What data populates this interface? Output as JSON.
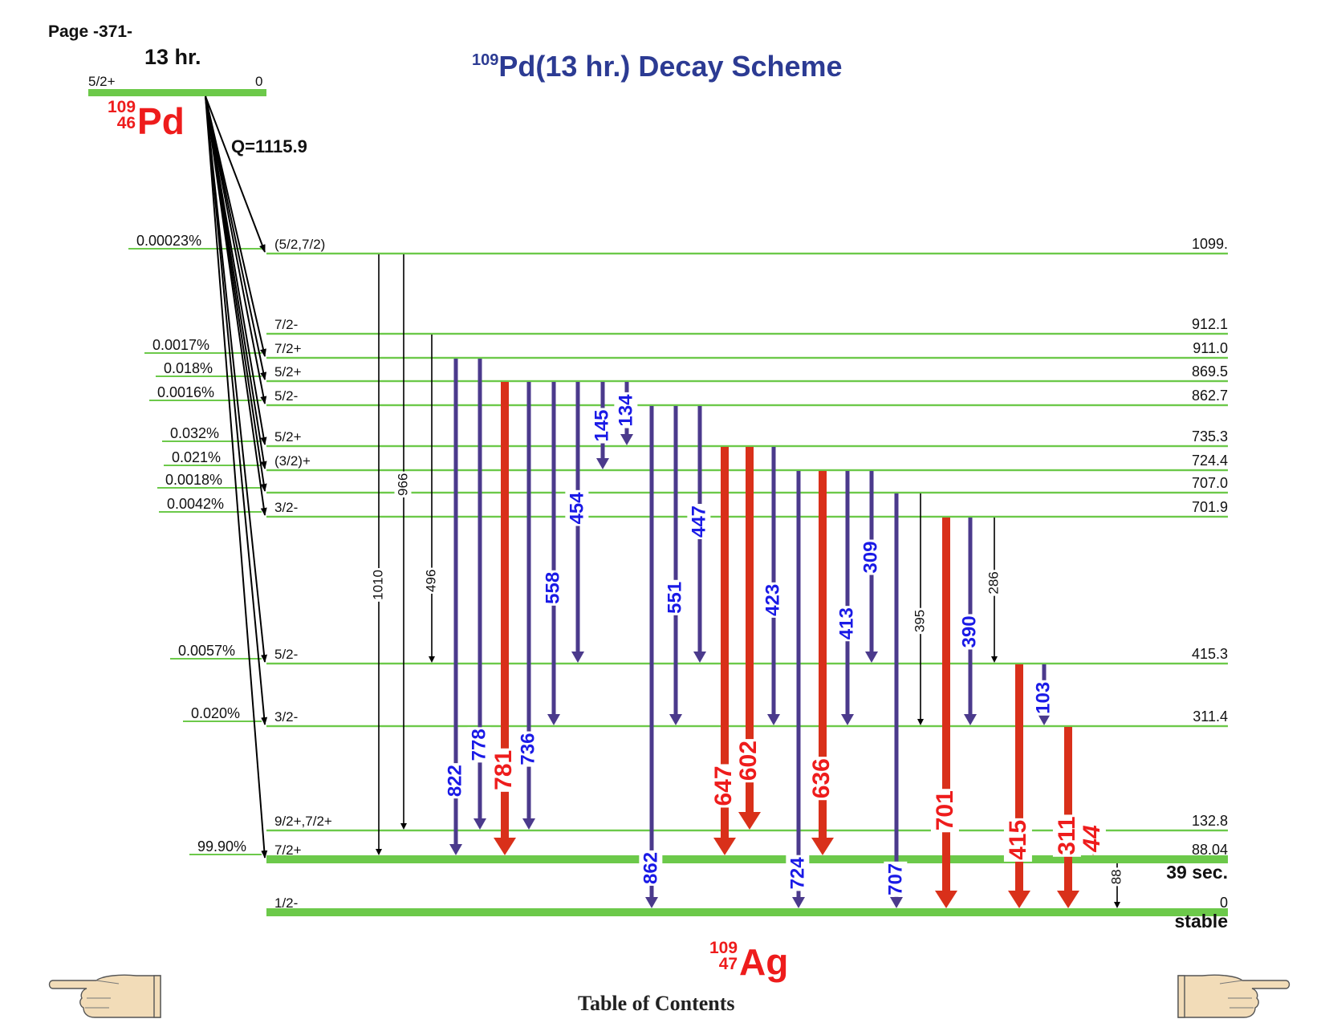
{
  "page_label": "Page -371-",
  "title": {
    "mass": "109",
    "text": "Pd(13 hr.) Decay Scheme"
  },
  "parent": {
    "mass": "109",
    "z": "46",
    "symbol": "Pd",
    "half_life": "13 hr.",
    "spin": "5/2+",
    "energy": "0",
    "q_value": "Q=1115.9"
  },
  "daughter": {
    "mass": "109",
    "z": "47",
    "symbol": "Ag"
  },
  "levels": [
    {
      "energy": "1099.",
      "spin": "(5/2,7/2)",
      "branch": "0.00023%",
      "e": 1099
    },
    {
      "energy": "912.1",
      "spin": "7/2-",
      "branch": "",
      "e": 912.1
    },
    {
      "energy": "911.0",
      "spin": "7/2+",
      "branch": "0.0017%",
      "e": 911.0
    },
    {
      "energy": "869.5",
      "spin": "5/2+",
      "branch": "0.018%",
      "e": 869.5
    },
    {
      "energy": "862.7",
      "spin": "5/2-",
      "branch": "0.0016%",
      "e": 862.7
    },
    {
      "energy": "735.3",
      "spin": "5/2+",
      "branch": "0.032%",
      "e": 735.3
    },
    {
      "energy": "724.4",
      "spin": "(3/2)+",
      "branch": "0.021%",
      "e": 724.4
    },
    {
      "energy": "707.0",
      "spin": "",
      "branch": "0.0018%",
      "e": 707.0
    },
    {
      "energy": "701.9",
      "spin": "3/2-",
      "branch": "0.0042%",
      "e": 701.9
    },
    {
      "energy": "415.3",
      "spin": "5/2-",
      "branch": "0.0057%",
      "e": 415.3
    },
    {
      "energy": "311.4",
      "spin": "3/2-",
      "branch": "0.020%",
      "e": 311.4
    },
    {
      "energy": "132.8",
      "spin": "9/2+,7/2+",
      "branch": "",
      "e": 132.8
    },
    {
      "energy": "88.04",
      "spin": "7/2+",
      "branch": "99.90%",
      "e": 88.04,
      "half_life": "39 sec."
    },
    {
      "energy": "0",
      "spin": "1/2-",
      "branch": "",
      "e": 0,
      "half_life": "stable"
    }
  ],
  "gammas": [
    {
      "label": "1010",
      "from": 1099,
      "to": 88.04,
      "style": "thin"
    },
    {
      "label": "966",
      "from": 1099,
      "to": 132.8,
      "style": "thin"
    },
    {
      "label": "496",
      "from": 912.1,
      "to": 415.3,
      "style": "thin"
    },
    {
      "label": "822",
      "from": 911.0,
      "to": 88.04,
      "style": "medium"
    },
    {
      "label": "778",
      "from": 911.0,
      "to": 132.8,
      "style": "medium"
    },
    {
      "label": "781",
      "from": 869.5,
      "to": 88.04,
      "style": "strong"
    },
    {
      "label": "736",
      "from": 869.5,
      "to": 132.8,
      "style": "medium"
    },
    {
      "label": "558",
      "from": 869.5,
      "to": 311.4,
      "style": "medium"
    },
    {
      "label": "454",
      "from": 869.5,
      "to": 415.3,
      "style": "medium"
    },
    {
      "label": "145",
      "from": 869.5,
      "to": 724.4,
      "style": "medium"
    },
    {
      "label": "134",
      "from": 869.5,
      "to": 735.3,
      "style": "medium"
    },
    {
      "label": "862",
      "from": 862.7,
      "to": 0,
      "style": "medium"
    },
    {
      "label": "551",
      "from": 862.7,
      "to": 311.4,
      "style": "medium"
    },
    {
      "label": "447",
      "from": 862.7,
      "to": 415.3,
      "style": "medium"
    },
    {
      "label": "647",
      "from": 735.3,
      "to": 88.04,
      "style": "strong"
    },
    {
      "label": "602",
      "from": 735.3,
      "to": 132.8,
      "style": "strong"
    },
    {
      "label": "423",
      "from": 735.3,
      "to": 311.4,
      "style": "medium"
    },
    {
      "label": "724",
      "from": 724.4,
      "to": 0,
      "style": "medium"
    },
    {
      "label": "636",
      "from": 724.4,
      "to": 88.04,
      "style": "strong"
    },
    {
      "label": "413",
      "from": 724.4,
      "to": 311.4,
      "style": "medium"
    },
    {
      "label": "309",
      "from": 724.4,
      "to": 415.3,
      "style": "medium"
    },
    {
      "label": "707",
      "from": 707.0,
      "to": 0,
      "style": "medium"
    },
    {
      "label": "395",
      "from": 707.0,
      "to": 311.4,
      "style": "thin"
    },
    {
      "label": "701",
      "from": 701.9,
      "to": 0,
      "style": "strong"
    },
    {
      "label": "390",
      "from": 701.9,
      "to": 311.4,
      "style": "medium"
    },
    {
      "label": "286",
      "from": 701.9,
      "to": 415.3,
      "style": "thin"
    },
    {
      "label": "415",
      "from": 415.3,
      "to": 0,
      "style": "strong"
    },
    {
      "label": "103",
      "from": 415.3,
      "to": 311.4,
      "style": "medium"
    },
    {
      "label": "311",
      "from": 311.4,
      "to": 0,
      "style": "strong"
    },
    {
      "label": "44",
      "from": 132.8,
      "to": 88.04,
      "style": "strong",
      "italic": true
    },
    {
      "label": "88",
      "from": 88.04,
      "to": 0,
      "style": "thin"
    }
  ],
  "colors": {
    "level": "#6cc94a",
    "strong": "#d9301a",
    "medium": "#4b3a8c",
    "medium_label": "#1a1ae6",
    "strong_label": "#ee1c1c",
    "thin": "#000000",
    "title": "#2c3b93"
  },
  "footer": {
    "toc": "Table of Contents",
    "prev_icon": "pointing-hand-left-icon",
    "next_icon": "pointing-hand-right-icon"
  }
}
